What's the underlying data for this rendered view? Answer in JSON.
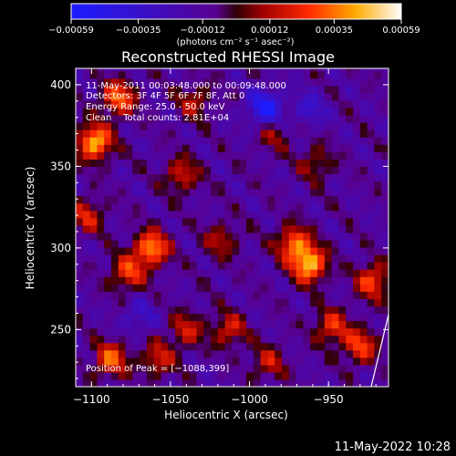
{
  "chart_data": {
    "type": "heatmap",
    "title": "Reconstructed RHESSI Image",
    "xlabel": "Heliocentric X (arcsec)",
    "ylabel": "Heliocentric Y (arcsec)",
    "xlim": [
      -1110,
      -912
    ],
    "ylim": [
      215,
      410
    ],
    "x_ticks": [
      -1100,
      -1050,
      -1000,
      -950
    ],
    "x_tick_labels": [
      "−1100",
      "−1050",
      "−1000",
      "−950"
    ],
    "y_ticks": [
      250,
      300,
      350,
      400
    ],
    "y_tick_labels": [
      "250",
      "300",
      "350",
      "400"
    ],
    "colorbar": {
      "range": [
        -0.00059,
        0.00059
      ],
      "ticks": [
        -0.00059,
        -0.00035,
        -0.00012,
        0.00012,
        0.00035,
        0.00059
      ],
      "tick_labels": [
        "−0.00059",
        "−0.00035",
        "−0.00012",
        "0.00012",
        "0.00035",
        "0.00059"
      ],
      "units_label": "(photons cm⁻² s⁻¹ asec⁻²)"
    },
    "annotations": [
      "11-May-2011 00:03:48.000 to 00:09:48.000",
      "Detectors: 3F 4F 5F 6F 7F 8F, Att 0",
      "Energy Range: 25.0 - 50.0 keV",
      "Clean    Total counts: 2.81E+04"
    ],
    "peak_label": "Position of Peak = [−1088,399]",
    "peak_position": [
      -1088,
      399
    ],
    "hotspots": [
      {
        "x": -1098,
        "y": 365,
        "v": 0.00059
      },
      {
        "x": -1083,
        "y": 392,
        "v": 0.00045
      },
      {
        "x": -1062,
        "y": 300,
        "v": 0.00052
      },
      {
        "x": -1077,
        "y": 285,
        "v": 0.00038
      },
      {
        "x": -1088,
        "y": 232,
        "v": 0.00042
      },
      {
        "x": -1058,
        "y": 232,
        "v": 0.0003
      },
      {
        "x": -962,
        "y": 290,
        "v": 0.00059
      },
      {
        "x": -972,
        "y": 303,
        "v": 0.00045
      },
      {
        "x": -922,
        "y": 280,
        "v": 0.0004
      },
      {
        "x": -948,
        "y": 252,
        "v": 0.00035
      },
      {
        "x": -930,
        "y": 240,
        "v": 0.00038
      },
      {
        "x": -1043,
        "y": 345,
        "v": 0.0003
      },
      {
        "x": -1040,
        "y": 250,
        "v": 0.00028
      },
      {
        "x": -1013,
        "y": 250,
        "v": 0.0003
      },
      {
        "x": -988,
        "y": 230,
        "v": 0.00026
      },
      {
        "x": -1035,
        "y": 390,
        "v": 0.00025
      },
      {
        "x": -958,
        "y": 352,
        "v": 0.00022
      },
      {
        "x": -1103,
        "y": 320,
        "v": 0.0003
      },
      {
        "x": -1018,
        "y": 305,
        "v": 0.00024
      },
      {
        "x": -985,
        "y": 370,
        "v": 0.0002
      }
    ],
    "coldspots": [
      {
        "x": -990,
        "y": 386,
        "v": -0.00045
      },
      {
        "x": -962,
        "y": 385,
        "v": -0.0002
      },
      {
        "x": -1070,
        "y": 258,
        "v": -0.00018
      }
    ]
  },
  "footer": {
    "timestamp": "11-May-2022 10:28"
  }
}
